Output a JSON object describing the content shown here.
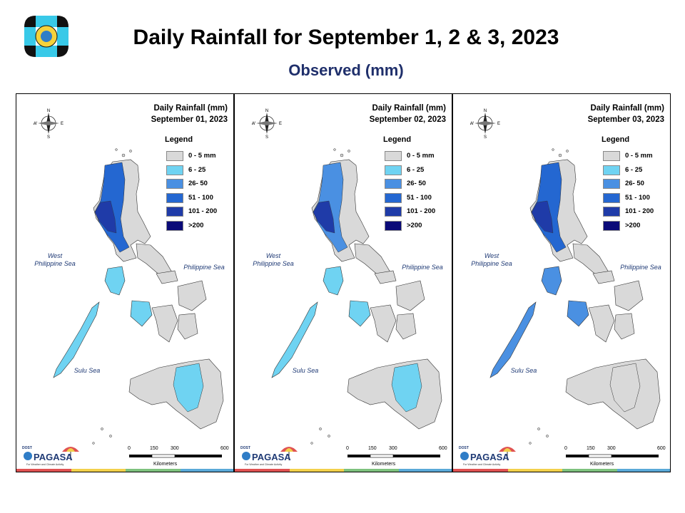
{
  "header": {
    "title": "Daily Rainfall for September 1, 2 & 3, 2023",
    "subtitle": "Observed (mm)"
  },
  "legend": {
    "title": "Legend",
    "items": [
      {
        "label": "0 - 5 mm",
        "color": "#d9d9d9"
      },
      {
        "label": "6 - 25",
        "color": "#6fd3f2"
      },
      {
        "label": "26- 50",
        "color": "#4a90e2"
      },
      {
        "label": "51 - 100",
        "color": "#2467d1"
      },
      {
        "label": "101 - 200",
        "color": "#1f3ba8"
      },
      {
        "label": ">200",
        "color": "#0a0a78"
      }
    ]
  },
  "seas": {
    "west": "West\nPhilippine Sea",
    "east": "Philippine Sea",
    "sulu": "Sulu Sea"
  },
  "compass": {
    "n": "N",
    "s": "S",
    "e": "E",
    "w": "W"
  },
  "scale": {
    "ticks": [
      "0",
      "150",
      "300",
      "600"
    ],
    "unit": "Kilometers"
  },
  "agency": {
    "name": "PAGASA",
    "dost": "DOST",
    "tagline": "For Weather and Climate Activity"
  },
  "footer_colors": [
    "#e05252",
    "#f2d04b",
    "#7ec27e",
    "#5aa9d8"
  ],
  "panels": [
    {
      "title_line1": "Daily Rainfall (mm)",
      "title_line2": "September 01, 2023",
      "north_color": "#2467d1",
      "north_core": "#1f3ba8",
      "visayas_color": "#6fd3f2",
      "mindanao_color": "#6fd3f2"
    },
    {
      "title_line1": "Daily Rainfall (mm)",
      "title_line2": "September 02, 2023",
      "north_color": "#4a90e2",
      "north_core": "#1f3ba8",
      "visayas_color": "#6fd3f2",
      "mindanao_color": "#6fd3f2"
    },
    {
      "title_line1": "Daily Rainfall (mm)",
      "title_line2": "September 03, 2023",
      "north_color": "#2467d1",
      "north_core": "#1f3ba8",
      "visayas_color": "#4a90e2",
      "mindanao_color": "#d9d9d9"
    }
  ]
}
